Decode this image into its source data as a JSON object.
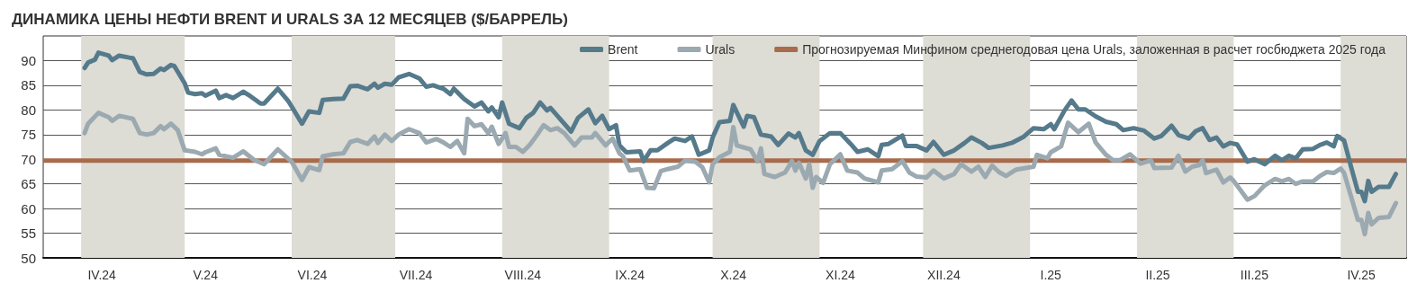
{
  "chart_data": {
    "type": "line",
    "title": "ДИНАМИКА ЦЕНЫ НЕФТИ BRENT И URALS ЗА 12 МЕСЯЦЕВ ($/БАРРЕЛЬ)",
    "xlim": [
      "2024-03-21",
      "2025-04-20"
    ],
    "xticks": [
      {
        "value": "2024-04-07",
        "label": "IV.24"
      },
      {
        "value": "2024-05-07",
        "label": "V.24"
      },
      {
        "value": "2024-06-07",
        "label": "VI.24"
      },
      {
        "value": "2024-07-07",
        "label": "VII.24"
      },
      {
        "value": "2024-08-07",
        "label": "VIII.24"
      },
      {
        "value": "2024-09-07",
        "label": "IX.24"
      },
      {
        "value": "2024-10-07",
        "label": "X.24"
      },
      {
        "value": "2024-11-07",
        "label": "XI.24"
      },
      {
        "value": "2024-12-07",
        "label": "XII.24"
      },
      {
        "value": "2025-01-07",
        "label": "I.25"
      },
      {
        "value": "2025-02-07",
        "label": "II.25"
      },
      {
        "value": "2025-03-07",
        "label": "III.25"
      },
      {
        "value": "2025-04-07",
        "label": "IV.25"
      }
    ],
    "ylim": [
      50,
      95
    ],
    "yticks": [
      50,
      55,
      60,
      65,
      70,
      75,
      80,
      85,
      90
    ],
    "grid": "y",
    "legend": "top right",
    "marker": "none",
    "line_style": "solid",
    "series": [
      {
        "name": "Brent",
        "color": "#557a8b",
        "x": [
          "2024-04-02",
          "2024-04-03",
          "2024-04-05",
          "2024-04-06",
          "2024-04-09",
          "2024-04-10",
          "2024-04-12",
          "2024-04-15",
          "2024-04-16",
          "2024-04-18",
          "2024-04-20",
          "2024-04-22",
          "2024-04-24",
          "2024-04-25",
          "2024-04-27",
          "2024-04-28",
          "2024-05-01",
          "2024-05-02",
          "2024-05-04",
          "2024-05-06",
          "2024-05-07",
          "2024-05-10",
          "2024-05-11",
          "2024-05-13",
          "2024-05-15",
          "2024-05-18",
          "2024-05-20",
          "2024-05-23",
          "2024-05-24",
          "2024-05-28",
          "2024-05-31",
          "2024-06-01",
          "2024-06-04",
          "2024-06-06",
          "2024-06-09",
          "2024-06-10",
          "2024-06-13",
          "2024-06-16",
          "2024-06-18",
          "2024-06-20",
          "2024-06-23",
          "2024-06-25",
          "2024-06-26",
          "2024-06-28",
          "2024-06-30",
          "2024-07-02",
          "2024-07-05",
          "2024-07-08",
          "2024-07-10",
          "2024-07-12",
          "2024-07-14",
          "2024-07-15",
          "2024-07-17",
          "2024-07-18",
          "2024-07-21",
          "2024-07-24",
          "2024-07-26",
          "2024-07-28",
          "2024-07-29",
          "2024-07-31",
          "2024-08-01",
          "2024-08-03",
          "2024-08-06",
          "2024-08-08",
          "2024-08-10",
          "2024-08-12",
          "2024-08-14",
          "2024-08-15",
          "2024-08-17",
          "2024-08-21",
          "2024-08-23",
          "2024-08-26",
          "2024-08-28",
          "2024-08-30",
          "2024-09-01",
          "2024-09-03",
          "2024-09-04",
          "2024-09-06",
          "2024-09-10",
          "2024-09-11",
          "2024-09-13",
          "2024-09-15",
          "2024-09-18",
          "2024-09-20",
          "2024-09-23",
          "2024-09-25",
          "2024-09-27",
          "2024-09-30",
          "2024-10-01",
          "2024-10-03",
          "2024-10-06",
          "2024-10-07",
          "2024-10-10",
          "2024-10-11",
          "2024-10-13",
          "2024-10-15",
          "2024-10-18",
          "2024-10-20",
          "2024-10-23",
          "2024-10-25",
          "2024-10-26",
          "2024-10-28",
          "2024-10-30",
          "2024-11-01",
          "2024-11-04",
          "2024-11-07",
          "2024-11-10",
          "2024-11-12",
          "2024-11-15",
          "2024-11-18",
          "2024-11-19",
          "2024-11-21",
          "2024-11-25",
          "2024-11-26",
          "2024-11-29",
          "2024-12-02",
          "2024-12-04",
          "2024-12-07",
          "2024-12-10",
          "2024-12-13",
          "2024-12-15",
          "2024-12-18",
          "2024-12-20",
          "2024-12-24",
          "2024-12-27",
          "2024-12-30",
          "2025-01-02",
          "2025-01-05",
          "2025-01-07",
          "2025-01-08",
          "2025-01-11",
          "2025-01-13",
          "2025-01-15",
          "2025-01-17",
          "2025-01-20",
          "2025-01-23",
          "2025-01-26",
          "2025-01-28",
          "2025-01-31",
          "2025-02-03",
          "2025-02-06",
          "2025-02-08",
          "2025-02-11",
          "2025-02-13",
          "2025-02-16",
          "2025-02-18",
          "2025-02-20",
          "2025-02-22",
          "2025-02-24",
          "2025-02-26",
          "2025-02-28",
          "2025-03-02",
          "2025-03-05",
          "2025-03-07",
          "2025-03-10",
          "2025-03-13",
          "2025-03-15",
          "2025-03-17",
          "2025-03-19",
          "2025-03-21",
          "2025-03-24",
          "2025-03-26",
          "2025-03-28",
          "2025-03-30",
          "2025-03-31",
          "2025-04-02",
          "2025-04-04",
          "2025-04-06",
          "2025-04-07",
          "2025-04-08",
          "2025-04-09",
          "2025-04-10",
          "2025-04-12",
          "2025-04-15",
          "2025-04-17"
        ],
        "values": [
          88.5,
          89.6,
          90.2,
          91.6,
          91.0,
          90.1,
          91.0,
          90.6,
          90.5,
          87.7,
          87.2,
          87.3,
          88.4,
          88.1,
          89.1,
          88.9,
          85.4,
          83.5,
          83.2,
          83.4,
          82.9,
          83.9,
          82.4,
          83.0,
          82.4,
          83.7,
          82.8,
          81.3,
          81.3,
          84.3,
          81.8,
          80.7,
          77.2,
          79.7,
          79.4,
          82.0,
          82.2,
          82.3,
          84.8,
          84.9,
          84.2,
          85.3,
          84.5,
          85.3,
          85.1,
          86.6,
          87.3,
          86.4,
          84.7,
          85.0,
          84.5,
          84.3,
          83.2,
          84.3,
          82.2,
          80.7,
          81.5,
          79.7,
          80.5,
          78.5,
          81.5,
          77.2,
          76.3,
          78.4,
          79.4,
          81.5,
          79.9,
          80.4,
          78.8,
          75.6,
          78.4,
          80.1,
          77.3,
          78.8,
          76.1,
          76.9,
          72.8,
          71.4,
          71.6,
          69.6,
          71.8,
          71.8,
          73.3,
          74.2,
          73.7,
          74.6,
          70.9,
          71.8,
          74.4,
          77.5,
          77.8,
          81.0,
          76.6,
          78.8,
          78.5,
          75.0,
          74.6,
          72.9,
          75.2,
          74.4,
          75.3,
          71.8,
          70.9,
          73.7,
          75.3,
          75.3,
          73.1,
          71.5,
          72.0,
          70.6,
          72.9,
          73.1,
          74.8,
          72.7,
          72.7,
          71.8,
          73.5,
          70.9,
          71.8,
          73.3,
          74.4,
          73.3,
          72.3,
          72.8,
          73.4,
          74.5,
          76.3,
          76.1,
          77.1,
          76.1,
          79.9,
          81.9,
          80.1,
          80.1,
          78.7,
          77.6,
          77.1,
          75.9,
          76.3,
          75.8,
          74.2,
          74.7,
          76.8,
          74.9,
          74.2,
          75.7,
          76.3,
          73.9,
          74.4,
          72.6,
          73.3,
          73.0,
          69.5,
          70.0,
          69.0,
          70.7,
          69.8,
          70.7,
          70.2,
          72.0,
          72.1,
          72.9,
          73.4,
          72.6,
          74.7,
          73.8,
          68.5,
          63.4,
          63.4,
          61.5,
          65.6,
          63.4,
          64.4,
          64.4,
          67.0
        ]
      },
      {
        "name": "Urals",
        "color": "#9ba9b1",
        "x": [
          "2024-04-02",
          "2024-04-03",
          "2024-04-06",
          "2024-04-09",
          "2024-04-10",
          "2024-04-12",
          "2024-04-16",
          "2024-04-18",
          "2024-04-20",
          "2024-04-22",
          "2024-04-24",
          "2024-04-25",
          "2024-04-27",
          "2024-04-29",
          "2024-05-01",
          "2024-05-04",
          "2024-05-06",
          "2024-05-07",
          "2024-05-10",
          "2024-05-11",
          "2024-05-15",
          "2024-05-18",
          "2024-05-21",
          "2024-05-24",
          "2024-05-28",
          "2024-05-31",
          "2024-06-01",
          "2024-06-04",
          "2024-06-06",
          "2024-06-09",
          "2024-06-10",
          "2024-06-13",
          "2024-06-16",
          "2024-06-18",
          "2024-06-20",
          "2024-06-23",
          "2024-06-25",
          "2024-06-26",
          "2024-06-28",
          "2024-06-30",
          "2024-07-02",
          "2024-07-05",
          "2024-07-08",
          "2024-07-10",
          "2024-07-13",
          "2024-07-15",
          "2024-07-17",
          "2024-07-19",
          "2024-07-21",
          "2024-07-22",
          "2024-07-24",
          "2024-07-26",
          "2024-07-28",
          "2024-07-29",
          "2024-07-31",
          "2024-08-02",
          "2024-08-03",
          "2024-08-05",
          "2024-08-07",
          "2024-08-09",
          "2024-08-11",
          "2024-08-13",
          "2024-08-15",
          "2024-08-17",
          "2024-08-19",
          "2024-08-22",
          "2024-08-24",
          "2024-08-27",
          "2024-08-28",
          "2024-08-31",
          "2024-09-02",
          "2024-09-04",
          "2024-09-05",
          "2024-09-07",
          "2024-09-10",
          "2024-09-12",
          "2024-09-14",
          "2024-09-16",
          "2024-09-18",
          "2024-09-21",
          "2024-09-23",
          "2024-09-26",
          "2024-09-28",
          "2024-09-30",
          "2024-10-01",
          "2024-10-03",
          "2024-10-06",
          "2024-10-07",
          "2024-10-08",
          "2024-10-12",
          "2024-10-14",
          "2024-10-15",
          "2024-10-16",
          "2024-10-19",
          "2024-10-22",
          "2024-10-24",
          "2024-10-25",
          "2024-10-26",
          "2024-10-28",
          "2024-10-29",
          "2024-10-30",
          "2024-10-31",
          "2024-11-02",
          "2024-11-04",
          "2024-11-07",
          "2024-11-09",
          "2024-11-12",
          "2024-11-14",
          "2024-11-18",
          "2024-11-19",
          "2024-11-22",
          "2024-11-25",
          "2024-11-27",
          "2024-11-29",
          "2024-12-02",
          "2024-12-04",
          "2024-12-07",
          "2024-12-10",
          "2024-12-12",
          "2024-12-15",
          "2024-12-17",
          "2024-12-19",
          "2024-12-21",
          "2024-12-23",
          "2024-12-25",
          "2024-12-28",
          "2025-01-02",
          "2025-01-03",
          "2025-01-06",
          "2025-01-07",
          "2025-01-10",
          "2025-01-12",
          "2025-01-15",
          "2025-01-18",
          "2025-01-20",
          "2025-01-23",
          "2025-01-25",
          "2025-01-27",
          "2025-01-30",
          "2025-02-02",
          "2025-02-05",
          "2025-02-06",
          "2025-02-11",
          "2025-02-13",
          "2025-02-15",
          "2025-02-17",
          "2025-02-19",
          "2025-02-20",
          "2025-02-21",
          "2025-02-24",
          "2025-02-26",
          "2025-02-28",
          "2025-03-01",
          "2025-03-03",
          "2025-03-05",
          "2025-03-07",
          "2025-03-10",
          "2025-03-13",
          "2025-03-15",
          "2025-03-17",
          "2025-03-19",
          "2025-03-21",
          "2025-03-24",
          "2025-03-26",
          "2025-03-28",
          "2025-03-30",
          "2025-04-01",
          "2025-04-02",
          "2025-04-04",
          "2025-04-06",
          "2025-04-07",
          "2025-04-08",
          "2025-04-09",
          "2025-04-10",
          "2025-04-12",
          "2025-04-15",
          "2025-04-17"
        ],
        "values": [
          75.3,
          77.2,
          79.4,
          78.5,
          77.8,
          78.8,
          78.2,
          75.3,
          75.0,
          75.3,
          76.7,
          76.1,
          77.2,
          75.9,
          71.8,
          71.5,
          71.0,
          71.4,
          72.2,
          70.9,
          70.3,
          71.6,
          69.9,
          69.0,
          72.0,
          70.1,
          69.5,
          65.8,
          68.4,
          67.8,
          70.6,
          71.0,
          71.2,
          73.5,
          73.9,
          73.1,
          74.6,
          73.3,
          75.0,
          73.7,
          75.0,
          76.1,
          75.3,
          73.4,
          74.1,
          73.4,
          72.5,
          73.7,
          71.2,
          78.2,
          76.7,
          77.1,
          75.3,
          76.6,
          73.1,
          75.3,
          72.5,
          72.5,
          71.5,
          72.9,
          74.8,
          76.9,
          75.9,
          76.3,
          75.3,
          72.8,
          74.4,
          74.4,
          75.3,
          72.8,
          74.2,
          71.2,
          70.6,
          67.7,
          68.0,
          64.2,
          64.1,
          67.6,
          68.0,
          68.5,
          69.7,
          69.5,
          68.4,
          65.3,
          69.0,
          70.4,
          71.5,
          76.5,
          72.8,
          72.0,
          69.6,
          72.2,
          67.0,
          66.4,
          67.3,
          69.6,
          67.7,
          69.3,
          66.1,
          69.0,
          64.2,
          66.4,
          65.2,
          69.0,
          71.0,
          67.7,
          67.3,
          66.1,
          65.3,
          67.7,
          68.0,
          69.6,
          67.3,
          66.5,
          66.3,
          67.7,
          66.1,
          67.0,
          69.0,
          67.5,
          68.5,
          66.4,
          68.7,
          67.4,
          66.6,
          67.9,
          68.5,
          70.9,
          70.2,
          71.4,
          72.6,
          77.4,
          75.5,
          77.2,
          73.4,
          70.9,
          69.8,
          69.8,
          71.0,
          69.1,
          69.8,
          68.2,
          68.3,
          70.7,
          67.5,
          68.5,
          68.8,
          69.8,
          67.2,
          67.9,
          65.3,
          66.3,
          65.6,
          63.7,
          61.8,
          62.5,
          64.7,
          66.0,
          65.5,
          66.0,
          65.0,
          65.5,
          65.5,
          66.6,
          67.4,
          67.2,
          68.1,
          67.2,
          62.5,
          57.7,
          57.7,
          54.8,
          59.1,
          56.8,
          58.1,
          58.3,
          61.1
        ]
      }
    ],
    "ref_lines": [
      {
        "axis": "y",
        "value": 69.7,
        "label": "Прогнозируемая Минфином среднегодовая цена Urals, заложенная в расчет госбюджета 2025 года",
        "color": "#a86b4b",
        "line_style": "solid"
      }
    ],
    "bands": [
      {
        "axis": "x",
        "from": "2024-04-01",
        "to": "2024-05-01",
        "color": "#dddcd5"
      },
      {
        "axis": "x",
        "from": "2024-06-01",
        "to": "2024-07-01",
        "color": "#dddcd5"
      },
      {
        "axis": "x",
        "from": "2024-08-01",
        "to": "2024-09-01",
        "color": "#dddcd5"
      },
      {
        "axis": "x",
        "from": "2024-10-01",
        "to": "2024-11-01",
        "color": "#dddcd5"
      },
      {
        "axis": "x",
        "from": "2024-12-01",
        "to": "2025-01-01",
        "color": "#dddcd5"
      },
      {
        "axis": "x",
        "from": "2025-02-01",
        "to": "2025-03-01",
        "color": "#dddcd5"
      },
      {
        "axis": "x",
        "from": "2025-04-01",
        "to": "2025-04-20",
        "color": "#dddcd5"
      }
    ]
  }
}
